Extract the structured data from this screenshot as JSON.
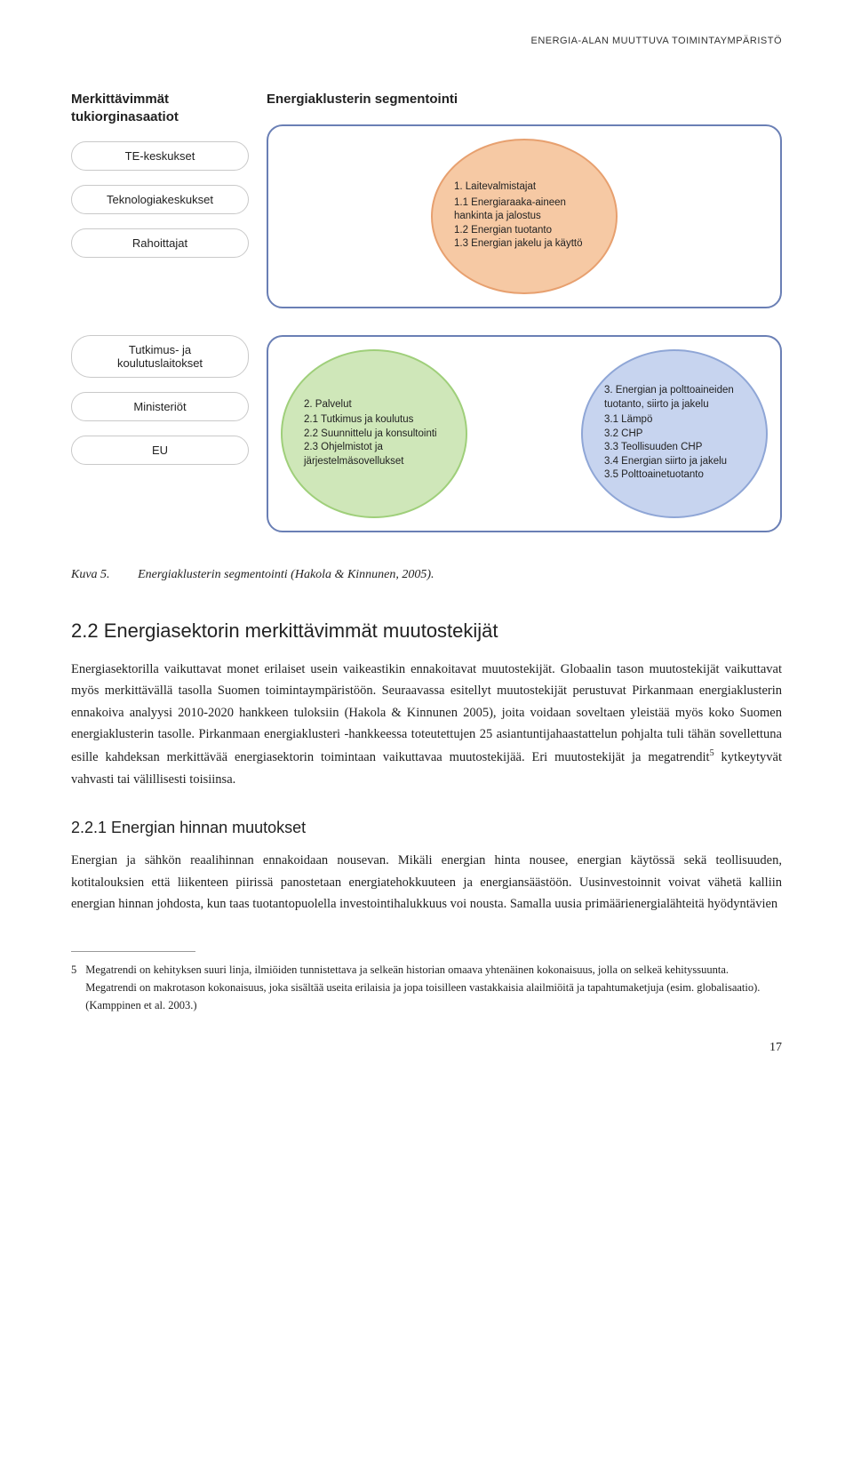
{
  "header": "ENERGIA-ALAN MUUTTUVA TOIMINTAYMPÄRISTÖ",
  "left": {
    "title": "Merkittävimmät tukiorginasaatiot",
    "pillsTop": [
      "TE-keskukset",
      "Teknologiakeskukset",
      "Rahoittajat"
    ],
    "pillsBottom": [
      "Tutkimus- ja koulutuslaitokset",
      "Ministeriöt",
      "EU"
    ]
  },
  "right": {
    "title": "Energiaklusterin segmentointi",
    "circle1": {
      "bg": "#f6c9a4",
      "border": "#e7a06f",
      "head": "1.  Laitevalmistajat",
      "lines": [
        "1.1 Energiaraaka-aineen hankinta ja jalostus",
        "1.2 Energian tuotanto",
        "1.3 Energian jakelu ja käyttö"
      ]
    },
    "circle2": {
      "bg": "#cfe7b9",
      "border": "#9fcf7a",
      "head": "2.  Palvelut",
      "lines": [
        "2.1 Tutkimus ja koulutus",
        "2.2 Suunnittelu ja konsultointi",
        "2.3 Ohjelmistot ja järjestelmäsovellukset"
      ]
    },
    "circle3": {
      "bg": "#c7d4ef",
      "border": "#8fa6d6",
      "head": "3.  Energian ja polttoaineiden tuotanto, siirto ja jakelu",
      "lines": [
        "3.1 Lämpö",
        "3.2 CHP",
        "3.3 Teollisuuden CHP",
        "3.4 Energian siirto ja jakelu",
        "3.5 Polttoainetuotanto"
      ]
    }
  },
  "caption": {
    "num": "Kuva 5.",
    "text": "Energiaklusterin segmentointi (Hakola & Kinnunen, 2005)."
  },
  "section": "2.2  Energiasektorin merkittävimmät muutostekijät",
  "para1a": "Energiasektorilla vaikuttavat monet erilaiset usein vaikeastikin ennakoitavat muutostekijät. Globaalin tason muutostekijät vaikuttavat myös merkittävällä tasolla Suomen toimintaympäristöön. Seuraavassa esitellyt muutostekijät perustuvat Pirkanmaan energiaklusterin ennakoiva analyysi 2010-2020 hankkeen tuloksiin (Hakola & Kinnunen 2005), joita voidaan soveltaen yleistää myös koko Suomen energiaklusterin tasolle. Pirkanmaan energiaklusteri -hankkeessa toteutettujen 25 asiantuntijahaastattelun pohjalta tuli tähän sovellettuna esille kahdeksan merkittävää energiasektorin toimintaan vaikuttavaa muutostekijää. Eri muutostekijät ja megatrendit",
  "para1b": " kytkeytyvät vahvasti tai välillisesti toisiinsa.",
  "subsection": "2.2.1 Energian hinnan muutokset",
  "para2": "Energian ja sähkön reaalihinnan ennakoidaan nousevan. Mikäli energian hinta nousee, energian käytössä sekä teollisuuden, kotitalouksien että liikenteen piirissä panostetaan energiatehokkuuteen ja energiansäästöön. Uusinvestoinnit voivat vähetä kalliin energian hinnan johdosta, kun taas tuotantopuolella investointihalukkuus voi nousta. Samalla uusia primäärienergialähteitä hyödyntävien",
  "footnote": {
    "num": "5",
    "text": "Megatrendi on kehityksen suuri linja, ilmiöiden tunnistettava ja selkeän historian omaava yhtenäinen kokonaisuus, jolla on selkeä kehityssuunta. Megatrendi on makrotason kokonaisuus, joka sisältää useita erilaisia ja jopa toisilleen vastakkaisia alailmiöitä ja tapahtumaketjuja (esim. globalisaatio). (Kamppinen et al. 2003.)"
  },
  "pageNum": "17"
}
